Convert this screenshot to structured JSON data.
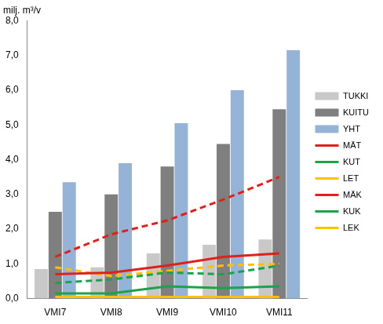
{
  "chart_data": {
    "type": "bar",
    "y_label": "milj. m³/v",
    "categories": [
      "VMI7",
      "VMI8",
      "VMI9",
      "VMI10",
      "VMI11"
    ],
    "series": [
      {
        "name": "TUKKI",
        "type": "bar",
        "color": "#c8c8c8",
        "values": [
          0.85,
          0.9,
          1.3,
          1.55,
          1.7
        ]
      },
      {
        "name": "KUITU",
        "type": "bar",
        "color": "#7f7f7f",
        "values": [
          2.5,
          3.0,
          3.8,
          4.45,
          5.45
        ]
      },
      {
        "name": "YHT",
        "type": "bar",
        "color": "#95b3d7",
        "values": [
          3.35,
          3.9,
          5.05,
          6.0,
          7.15
        ]
      },
      {
        "name": "MÄT",
        "type": "line",
        "color": "#e0201b",
        "line_style": "solid",
        "values": [
          0.7,
          0.75,
          0.95,
          1.2,
          1.3
        ]
      },
      {
        "name": "KUT",
        "type": "line",
        "color": "#1aa34a",
        "line_style": "solid",
        "values": [
          0.15,
          0.15,
          0.35,
          0.3,
          0.35
        ]
      },
      {
        "name": "LET",
        "type": "line",
        "color": "#ffc000",
        "line_style": "solid",
        "values": [
          0.05,
          0.05,
          0.05,
          0.05,
          0.05
        ]
      },
      {
        "name": "MÄK",
        "type": "line",
        "color": "#e0201b",
        "line_style": "dashed",
        "values": [
          1.2,
          1.85,
          2.25,
          2.85,
          3.5
        ]
      },
      {
        "name": "KUK",
        "type": "line",
        "color": "#1aa34a",
        "line_style": "dashed",
        "values": [
          0.45,
          0.55,
          0.75,
          0.7,
          0.95
        ]
      },
      {
        "name": "LEK",
        "type": "line",
        "color": "#ffc000",
        "line_style": "dashed",
        "values": [
          0.9,
          0.65,
          0.8,
          0.95,
          1.0
        ]
      }
    ],
    "ylim": [
      0,
      8
    ],
    "yticks": [
      {
        "value": 0,
        "label": "0,0"
      },
      {
        "value": 1,
        "label": "1,0"
      },
      {
        "value": 2,
        "label": "2,0"
      },
      {
        "value": 3,
        "label": "3,0"
      },
      {
        "value": 4,
        "label": "4,0"
      },
      {
        "value": 5,
        "label": "5,0"
      },
      {
        "value": 6,
        "label": "6,0"
      },
      {
        "value": 7,
        "label": "7,0"
      },
      {
        "value": 8,
        "label": "8,0"
      }
    ],
    "grid": false,
    "legend": "right"
  }
}
